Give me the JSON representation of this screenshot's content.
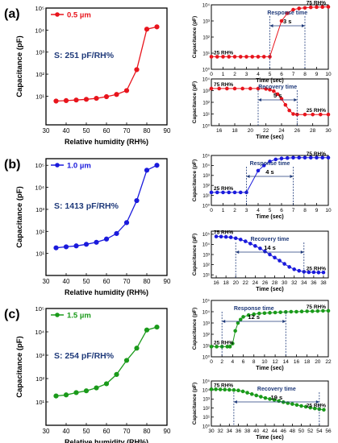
{
  "chart_data": [
    {
      "id": "a-main",
      "panel": "(a)",
      "type": "line",
      "xlabel": "Relative humidity (RH%)",
      "ylabel": "Capacitance (pF)",
      "xlim": [
        30,
        90
      ],
      "xticks": [
        30,
        40,
        50,
        60,
        70,
        80,
        90
      ],
      "yscale": "log",
      "ylim": [
        0.5,
        100000
      ],
      "yticks": [
        {
          "v": 10,
          "l": "10¹"
        },
        {
          "v": 100,
          "l": "10²"
        },
        {
          "v": 1000,
          "l": "10³"
        },
        {
          "v": 10000,
          "l": "10⁴"
        },
        {
          "v": 100000,
          "l": "10⁵"
        }
      ],
      "series": [
        {
          "name": "0.5 µm",
          "color": "#e8141c",
          "x": [
            35,
            40,
            45,
            50,
            55,
            60,
            65,
            70,
            75,
            80,
            85
          ],
          "y": [
            6,
            6.3,
            6.7,
            7.2,
            8,
            9.5,
            12,
            18,
            160,
            11000,
            14000
          ]
        }
      ],
      "annotation": "S: 251 pF/RH%"
    },
    {
      "id": "a-resp",
      "type": "line",
      "xlabel": "Time (sec)",
      "ylabel": "Capacitance (pF)",
      "xlim": [
        0,
        10
      ],
      "xticks": [
        0,
        1,
        2,
        3,
        4,
        5,
        6,
        7,
        8,
        9,
        10
      ],
      "yscale": "log",
      "ylim": [
        1,
        10000
      ],
      "yticks": [
        {
          "v": 1,
          "l": "10⁰"
        },
        {
          "v": 10,
          "l": "10¹"
        },
        {
          "v": 100,
          "l": "10²"
        },
        {
          "v": 1000,
          "l": "10³"
        },
        {
          "v": 10000,
          "l": "10⁴"
        }
      ],
      "series": [
        {
          "name": "",
          "color": "#e8141c",
          "x": [
            0,
            0.5,
            1,
            1.5,
            2,
            2.5,
            3,
            3.5,
            4,
            4.5,
            5,
            6,
            6.5,
            7,
            7.5,
            8,
            8.5,
            9,
            9.5,
            10
          ],
          "y": [
            6,
            6,
            6,
            6,
            6,
            6,
            6,
            6,
            6,
            6,
            6,
            1000,
            3000,
            5000,
            6000,
            6500,
            7000,
            7200,
            7300,
            7500
          ]
        }
      ],
      "labels": [
        "25 RH%",
        "75 RH%"
      ],
      "bracket_title": "Response time",
      "bracket_value": "3 s",
      "bracket": [
        5,
        8
      ]
    },
    {
      "id": "a-rec",
      "type": "line",
      "xlabel": "Time (sec)",
      "ylabel": "Capacitance (pF)",
      "xlim": [
        15,
        30
      ],
      "xticks": [
        16,
        18,
        20,
        22,
        24,
        26,
        28,
        30
      ],
      "yscale": "log",
      "ylim": [
        1,
        10000
      ],
      "yticks": [
        {
          "v": 1,
          "l": "10⁰"
        },
        {
          "v": 10,
          "l": "10¹"
        },
        {
          "v": 100,
          "l": "10²"
        },
        {
          "v": 1000,
          "l": "10³"
        },
        {
          "v": 10000,
          "l": "10⁴"
        }
      ],
      "series": [
        {
          "name": "",
          "color": "#e8141c",
          "x": [
            15,
            16,
            17,
            18,
            19,
            20,
            21,
            22,
            22.5,
            23,
            23.5,
            24,
            24.5,
            25,
            25.5,
            26,
            27,
            28,
            29,
            30
          ],
          "y": [
            1500,
            1500,
            1500,
            1500,
            1500,
            1500,
            1500,
            1400,
            1200,
            900,
            500,
            200,
            60,
            20,
            10,
            9,
            9,
            9,
            9,
            9
          ]
        }
      ],
      "labels": [
        "75 RH%",
        "25 RH%"
      ],
      "bracket_title": "Recovery time",
      "bracket_value": "5 s",
      "bracket": [
        21,
        26
      ]
    },
    {
      "id": "b-main",
      "panel": "(b)",
      "type": "line",
      "xlabel": "Relative humidity (RH%)",
      "ylabel": "Capacitance (pF)",
      "xlim": [
        30,
        90
      ],
      "xticks": [
        30,
        40,
        50,
        60,
        70,
        80,
        90
      ],
      "yscale": "log",
      "ylim": [
        1,
        200000
      ],
      "yticks": [
        {
          "v": 10,
          "l": "10¹"
        },
        {
          "v": 100,
          "l": "10²"
        },
        {
          "v": 1000,
          "l": "10³"
        },
        {
          "v": 10000,
          "l": "10⁴"
        },
        {
          "v": 100000,
          "l": "10⁵"
        }
      ],
      "series": [
        {
          "name": "1.0 µm",
          "color": "#1a1adc",
          "x": [
            35,
            40,
            45,
            50,
            55,
            60,
            65,
            70,
            75,
            80,
            85
          ],
          "y": [
            18,
            20,
            22,
            26,
            32,
            45,
            80,
            250,
            2500,
            60000,
            100000
          ]
        }
      ],
      "annotation": "S: 1413 pF/RH%"
    },
    {
      "id": "b-resp",
      "type": "line",
      "xlabel": "Time (sec)",
      "ylabel": "Capacitance (pF)",
      "xlim": [
        0,
        10
      ],
      "xticks": [
        0,
        1,
        2,
        3,
        4,
        5,
        6,
        7,
        8,
        9,
        10
      ],
      "yscale": "log",
      "ylim": [
        1,
        100000
      ],
      "yticks": [
        {
          "v": 1,
          "l": "10⁰"
        },
        {
          "v": 10,
          "l": "10¹"
        },
        {
          "v": 100,
          "l": "10²"
        },
        {
          "v": 1000,
          "l": "10³"
        },
        {
          "v": 10000,
          "l": "10⁴"
        },
        {
          "v": 100000,
          "l": "10⁵"
        }
      ],
      "series": [
        {
          "name": "",
          "color": "#1a1adc",
          "x": [
            0,
            0.5,
            1,
            1.5,
            2,
            2.5,
            3,
            4,
            4.5,
            5,
            5.5,
            6,
            6.5,
            7,
            7.5,
            8,
            8.5,
            9,
            9.5,
            10
          ],
          "y": [
            20,
            20,
            20,
            20,
            20,
            20,
            20,
            3000,
            10000,
            25000,
            40000,
            50000,
            55000,
            60000,
            60000,
            60000,
            60000,
            60000,
            60000,
            60000
          ]
        }
      ],
      "labels": [
        "25 RH%",
        "75 RH%"
      ],
      "bracket_title": "Response time",
      "bracket_value": "4 s",
      "bracket": [
        3,
        7
      ]
    },
    {
      "id": "b-rec",
      "type": "line",
      "xlabel": "Time (sec)",
      "ylabel": "Capacitance (pF)",
      "xlim": [
        15,
        39
      ],
      "xticks": [
        16,
        18,
        20,
        22,
        24,
        26,
        28,
        30,
        32,
        34,
        36,
        38
      ],
      "yscale": "log",
      "ylim": [
        5,
        200000
      ],
      "yticks": [
        {
          "v": 10,
          "l": "10¹"
        },
        {
          "v": 100,
          "l": "10²"
        },
        {
          "v": 1000,
          "l": "10³"
        },
        {
          "v": 10000,
          "l": "10⁴"
        },
        {
          "v": 100000,
          "l": "10⁵"
        }
      ],
      "series": [
        {
          "name": "",
          "color": "#1a1adc",
          "x": [
            16,
            17,
            18,
            19,
            20,
            21,
            22,
            23,
            24,
            25,
            26,
            27,
            28,
            29,
            30,
            31,
            32,
            33,
            34,
            35,
            36,
            37,
            38
          ],
          "y": [
            60000,
            58000,
            55000,
            50000,
            40000,
            30000,
            20000,
            12000,
            7000,
            4000,
            2000,
            1000,
            500,
            250,
            120,
            60,
            35,
            25,
            20,
            18,
            18,
            17,
            17
          ]
        }
      ],
      "labels": [
        "75 RH%",
        "25 RH%"
      ],
      "bracket_title": "Recovery time",
      "bracket_value": "14 s",
      "bracket": [
        20,
        34
      ]
    },
    {
      "id": "c-main",
      "panel": "(c)",
      "type": "line",
      "xlabel": "Relative humidity (RH%)",
      "ylabel": "Capacitance (pF)",
      "xlim": [
        30,
        90
      ],
      "xticks": [
        30,
        40,
        50,
        60,
        70,
        80,
        90
      ],
      "yscale": "log",
      "ylim": [
        1,
        100000
      ],
      "yticks": [
        {
          "v": 10,
          "l": "10¹"
        },
        {
          "v": 100,
          "l": "10²"
        },
        {
          "v": 1000,
          "l": "10³"
        },
        {
          "v": 10000,
          "l": "10⁴"
        },
        {
          "v": 100000,
          "l": "10⁵"
        }
      ],
      "series": [
        {
          "name": "1.5 µm",
          "color": "#1a9a1a",
          "x": [
            35,
            40,
            45,
            50,
            55,
            60,
            65,
            70,
            75,
            80,
            85
          ],
          "y": [
            18,
            20,
            25,
            30,
            40,
            60,
            150,
            600,
            2000,
            12000,
            16000
          ]
        }
      ],
      "annotation": "S: 254 pF/RH%"
    },
    {
      "id": "c-resp",
      "type": "line",
      "xlabel": "Time (sec)",
      "ylabel": "Capacitance (pF)",
      "xlim": [
        0,
        22
      ],
      "xticks": [
        0,
        2,
        4,
        6,
        8,
        10,
        12,
        14,
        16,
        18,
        20,
        22
      ],
      "yscale": "log",
      "ylim": [
        1,
        100000
      ],
      "yticks": [
        {
          "v": 1,
          "l": "10⁰"
        },
        {
          "v": 10,
          "l": "10¹"
        },
        {
          "v": 100,
          "l": "10²"
        },
        {
          "v": 1000,
          "l": "10³"
        },
        {
          "v": 10000,
          "l": "10⁴"
        },
        {
          "v": 100000,
          "l": "10⁵"
        }
      ],
      "series": [
        {
          "name": "",
          "color": "#1a9a1a",
          "x": [
            0,
            1,
            2,
            3,
            3.5,
            4,
            4.5,
            5,
            5.5,
            6,
            7,
            8,
            9,
            10,
            11,
            12,
            13,
            14,
            15,
            16,
            17,
            18,
            19,
            20,
            21,
            22
          ],
          "y": [
            8,
            8,
            8,
            8,
            8,
            15,
            200,
            1000,
            2000,
            3500,
            5000,
            6000,
            7000,
            7500,
            8000,
            8500,
            9000,
            9500,
            10000,
            10000,
            10500,
            11000,
            11000,
            11500,
            12000,
            12000
          ]
        }
      ],
      "labels": [
        "25 RH%",
        "75 RH%"
      ],
      "bracket_title": "Response time",
      "bracket_value": "12 s",
      "bracket": [
        2,
        14
      ]
    },
    {
      "id": "c-rec",
      "type": "line",
      "xlabel": "Time (sec)",
      "ylabel": "Capacitance (pF)",
      "xlim": [
        30,
        56
      ],
      "xticks": [
        30,
        32,
        34,
        36,
        38,
        40,
        42,
        44,
        46,
        48,
        50,
        52,
        54,
        56
      ],
      "yscale": "log",
      "ylim": [
        1,
        100000
      ],
      "yticks": [
        {
          "v": 1,
          "l": "10⁰"
        },
        {
          "v": 10,
          "l": "10¹"
        },
        {
          "v": 100,
          "l": "10²"
        },
        {
          "v": 1000,
          "l": "10³"
        },
        {
          "v": 10000,
          "l": "10⁴"
        },
        {
          "v": 100000,
          "l": "10⁵"
        }
      ],
      "series": [
        {
          "name": "",
          "color": "#1a9a1a",
          "x": [
            30,
            31,
            32,
            33,
            34,
            35,
            36,
            37,
            38,
            39,
            40,
            41,
            42,
            43,
            44,
            45,
            46,
            47,
            48,
            49,
            50,
            51,
            52,
            53,
            54,
            55
          ],
          "y": [
            12000,
            12000,
            11500,
            11000,
            10500,
            10000,
            9000,
            7000,
            5000,
            3500,
            2500,
            1800,
            1300,
            1000,
            800,
            600,
            450,
            350,
            280,
            220,
            170,
            140,
            110,
            90,
            75,
            65
          ]
        }
      ],
      "labels": [
        "75 RH%",
        "25 RH%"
      ],
      "bracket_title": "Recovery time",
      "bracket_value": "19 s",
      "bracket": [
        35,
        54
      ]
    }
  ]
}
